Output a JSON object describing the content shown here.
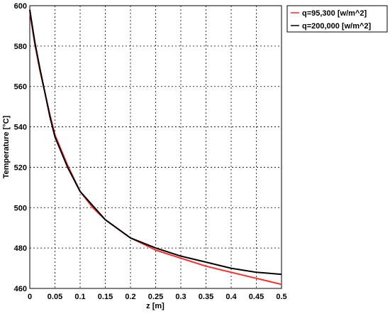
{
  "chart_data": {
    "type": "line",
    "xlabel": "z [m]",
    "ylabel": "Temperature [°C]",
    "xlim": [
      0,
      0.5
    ],
    "ylim": [
      460,
      600
    ],
    "x_ticks": [
      0,
      0.05,
      0.1,
      0.15,
      0.2,
      0.25,
      0.3,
      0.35,
      0.4,
      0.45,
      0.5
    ],
    "x_tick_labels": [
      "0",
      "0.05",
      "0.1",
      "0.15",
      "0.2",
      "0.25",
      "0.3",
      "0.35",
      "0.4",
      "0.45",
      "0.5"
    ],
    "y_ticks": [
      460,
      480,
      500,
      520,
      540,
      560,
      580,
      600
    ],
    "y_tick_labels": [
      "460",
      "480",
      "500",
      "520",
      "540",
      "560",
      "580",
      "600"
    ],
    "grid": true,
    "legend_position": "outside-top-right",
    "series": [
      {
        "name": "q=95,300 [w/m^2]",
        "color": "#ff2a2a",
        "x": [
          0,
          0.005,
          0.01,
          0.02,
          0.03,
          0.04,
          0.05,
          0.075,
          0.1,
          0.125,
          0.15,
          0.2,
          0.25,
          0.3,
          0.35,
          0.4,
          0.45,
          0.5
        ],
        "y": [
          597,
          589,
          581,
          568,
          557,
          546,
          536,
          521,
          508,
          500,
          494,
          485,
          479,
          475,
          471,
          468,
          465,
          462
        ]
      },
      {
        "name": "q=200,000 [w/m^2]",
        "color": "#000000",
        "x": [
          0,
          0.005,
          0.01,
          0.02,
          0.03,
          0.04,
          0.05,
          0.075,
          0.1,
          0.125,
          0.15,
          0.2,
          0.25,
          0.3,
          0.35,
          0.4,
          0.45,
          0.5
        ],
        "y": [
          598,
          590,
          582,
          569,
          557,
          545,
          535,
          520,
          508,
          501,
          494,
          485,
          480,
          476,
          473,
          470,
          468,
          467
        ]
      }
    ]
  }
}
